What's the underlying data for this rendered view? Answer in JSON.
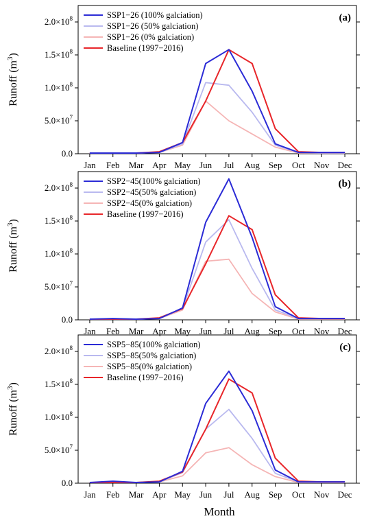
{
  "colors": {
    "full": "#2b2bd6",
    "half": "#b9b9ef",
    "zero": "#f5b5b5",
    "baseline": "#e8262a"
  },
  "xlabel": "Month",
  "ylabel_main": "Runoff (m",
  "ylabel_sup": "3",
  "ylabel_close": ")",
  "ytick_labels": [
    {
      "mant": "0.0",
      "exp": ""
    },
    {
      "mant": "5.0×10",
      "exp": "7"
    },
    {
      "mant": "1.0×10",
      "exp": "8"
    },
    {
      "mant": "1.5×10",
      "exp": "8"
    },
    {
      "mant": "2.0×10",
      "exp": "8"
    }
  ],
  "chart_data": [
    {
      "type": "line",
      "panel_label": "(a)",
      "categories": [
        "Jan",
        "Feb",
        "Mar",
        "Apr",
        "May",
        "Jun",
        "Jul",
        "Aug",
        "Sep",
        "Oct",
        "Nov",
        "Dec"
      ],
      "ylim": [
        0,
        225000000
      ],
      "yticks": [
        0,
        50000000,
        100000000,
        150000000,
        200000000
      ],
      "legend_position": "top-left",
      "series": [
        {
          "name": "SSP1−26 (100% galciation)",
          "color_key": "full",
          "values": [
            1000000,
            1000000,
            1000000,
            2000000,
            17000000,
            137000000,
            158000000,
            95000000,
            15000000,
            2000000,
            2000000,
            2000000
          ]
        },
        {
          "name": "SSP1−26 (50% galciation)",
          "color_key": "half",
          "values": [
            1000000,
            1000000,
            1000000,
            2000000,
            15000000,
            108000000,
            104000000,
            63000000,
            13000000,
            2000000,
            1000000,
            1000000
          ]
        },
        {
          "name": "SSP1−26 (0% galciation)",
          "color_key": "zero",
          "values": [
            1000000,
            1000000,
            1000000,
            2000000,
            13000000,
            80000000,
            50000000,
            30000000,
            10000000,
            1000000,
            1000000,
            1000000
          ]
        },
        {
          "name": "Baseline (1997−2016)",
          "color_key": "baseline",
          "values": [
            1000000,
            1000000,
            1000000,
            3000000,
            17000000,
            80000000,
            158000000,
            137000000,
            38000000,
            3000000,
            2000000,
            2000000
          ]
        }
      ]
    },
    {
      "type": "line",
      "panel_label": "(b)",
      "categories": [
        "Jan",
        "Feb",
        "Mar",
        "Apr",
        "May",
        "Jun",
        "Jul",
        "Aug",
        "Sep",
        "Oct",
        "Nov",
        "Dec"
      ],
      "ylim": [
        0,
        225000000
      ],
      "yticks": [
        0,
        50000000,
        100000000,
        150000000,
        200000000
      ],
      "legend_position": "top-left",
      "series": [
        {
          "name": "SSP2−45(100% galciation)",
          "color_key": "full",
          "values": [
            1000000,
            2000000,
            1000000,
            2000000,
            18000000,
            148000000,
            214000000,
            125000000,
            20000000,
            2000000,
            2000000,
            2000000
          ]
        },
        {
          "name": "SSP2−45(50% galciation)",
          "color_key": "half",
          "values": [
            1000000,
            2000000,
            1000000,
            2000000,
            17000000,
            118000000,
            152000000,
            78000000,
            15000000,
            2000000,
            2000000,
            2000000
          ]
        },
        {
          "name": "SSP2−45(0% galciation)",
          "color_key": "zero",
          "values": [
            1000000,
            1000000,
            1000000,
            2000000,
            15000000,
            89000000,
            92000000,
            40000000,
            12000000,
            1000000,
            1000000,
            1000000
          ]
        },
        {
          "name": "Baseline (1997−2016)",
          "color_key": "baseline",
          "values": [
            1000000,
            1000000,
            1000000,
            3000000,
            17000000,
            85000000,
            158000000,
            137000000,
            38000000,
            3000000,
            2000000,
            2000000
          ]
        }
      ]
    },
    {
      "type": "line",
      "panel_label": "(c)",
      "categories": [
        "Jan",
        "Feb",
        "Mar",
        "Apr",
        "May",
        "Jun",
        "Jul",
        "Aug",
        "Sep",
        "Oct",
        "Nov",
        "Dec"
      ],
      "ylim": [
        0,
        225000000
      ],
      "yticks": [
        0,
        50000000,
        100000000,
        150000000,
        200000000
      ],
      "legend_position": "top-left",
      "series": [
        {
          "name": "SSP5−85(100% galciation)",
          "color_key": "full",
          "values": [
            1000000,
            3000000,
            1000000,
            2000000,
            18000000,
            121000000,
            170000000,
            110000000,
            20000000,
            2000000,
            2000000,
            2000000
          ]
        },
        {
          "name": "SSP5−85(50% galciation)",
          "color_key": "half",
          "values": [
            1000000,
            2000000,
            1000000,
            2000000,
            16000000,
            82000000,
            112000000,
            68000000,
            15000000,
            2000000,
            2000000,
            2000000
          ]
        },
        {
          "name": "SSP5−85(0% galciation)",
          "color_key": "zero",
          "values": [
            1000000,
            1000000,
            1000000,
            2000000,
            11000000,
            46000000,
            54000000,
            28000000,
            10000000,
            1000000,
            1000000,
            1000000
          ]
        },
        {
          "name": "Baseline (1997−2016)",
          "color_key": "baseline",
          "values": [
            1000000,
            1000000,
            1000000,
            3000000,
            17000000,
            82000000,
            158000000,
            137000000,
            38000000,
            3000000,
            2000000,
            2000000
          ]
        }
      ]
    }
  ]
}
